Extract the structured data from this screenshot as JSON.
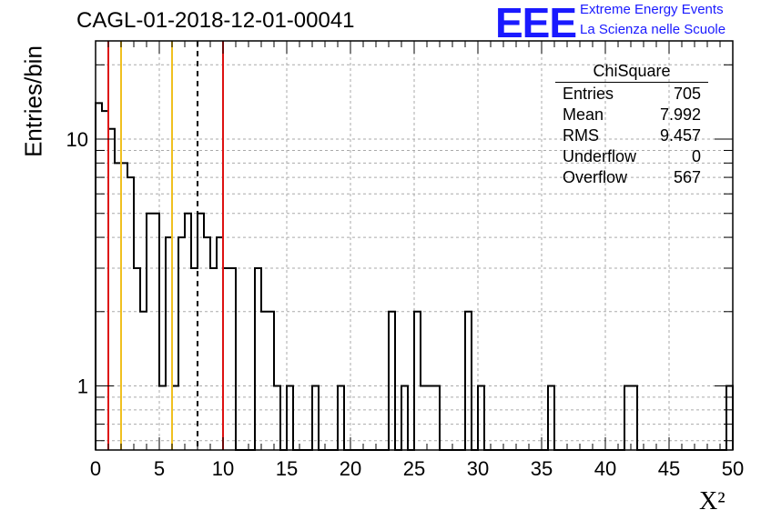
{
  "header": {
    "title": "CAGL-01-2018-12-01-00041",
    "logo_text": "EEE",
    "tagline_1": "Extreme Energy Events",
    "tagline_2": "La Scienza nelle Scuole"
  },
  "stats_box": {
    "title": "ChiSquare",
    "rows": [
      {
        "label": "Entries",
        "value": "705"
      },
      {
        "label": "Mean",
        "value": "7.992"
      },
      {
        "label": "RMS",
        "value": "9.457"
      },
      {
        "label": "Underflow",
        "value": "0"
      },
      {
        "label": "Overflow",
        "value": "567"
      }
    ]
  },
  "colors": {
    "red_line": "#dd1111",
    "yellow_line": "#f0c020",
    "logo_blue": "#1a1aff"
  },
  "chart_data": {
    "type": "histogram",
    "xlabel": "X²",
    "ylabel": "Entries/bin",
    "xlim": [
      0,
      50
    ],
    "ylim": [
      0.55,
      25
    ],
    "y_scale": "log",
    "grid": true,
    "bin_width": 0.5,
    "x_ticks": [
      "0",
      "5",
      "10",
      "15",
      "20",
      "25",
      "30",
      "35",
      "40",
      "45",
      "50"
    ],
    "y_ticks": [
      {
        "value": 1,
        "label": "1"
      },
      {
        "value": 10,
        "label": "10"
      }
    ],
    "bins": [
      {
        "x": 0.0,
        "y": 14
      },
      {
        "x": 0.5,
        "y": 13
      },
      {
        "x": 1.0,
        "y": 11
      },
      {
        "x": 1.5,
        "y": 8
      },
      {
        "x": 2.0,
        "y": 8
      },
      {
        "x": 2.5,
        "y": 7
      },
      {
        "x": 3.0,
        "y": 3
      },
      {
        "x": 3.5,
        "y": 2
      },
      {
        "x": 4.0,
        "y": 5
      },
      {
        "x": 4.5,
        "y": 5
      },
      {
        "x": 5.0,
        "y": 1
      },
      {
        "x": 5.5,
        "y": 4
      },
      {
        "x": 6.0,
        "y": 1
      },
      {
        "x": 6.5,
        "y": 4
      },
      {
        "x": 7.0,
        "y": 5
      },
      {
        "x": 7.5,
        "y": 3
      },
      {
        "x": 8.0,
        "y": 5
      },
      {
        "x": 8.5,
        "y": 4
      },
      {
        "x": 9.0,
        "y": 3
      },
      {
        "x": 9.5,
        "y": 4
      },
      {
        "x": 10.0,
        "y": 3
      },
      {
        "x": 10.5,
        "y": 3
      },
      {
        "x": 12.5,
        "y": 3
      },
      {
        "x": 13.0,
        "y": 2
      },
      {
        "x": 13.5,
        "y": 2
      },
      {
        "x": 14.0,
        "y": 1
      },
      {
        "x": 15.0,
        "y": 1
      },
      {
        "x": 17.0,
        "y": 1
      },
      {
        "x": 19.0,
        "y": 1
      },
      {
        "x": 23.0,
        "y": 2
      },
      {
        "x": 24.0,
        "y": 1
      },
      {
        "x": 25.0,
        "y": 2
      },
      {
        "x": 25.5,
        "y": 1
      },
      {
        "x": 26.0,
        "y": 1
      },
      {
        "x": 26.5,
        "y": 1
      },
      {
        "x": 29.0,
        "y": 2
      },
      {
        "x": 30.0,
        "y": 1
      },
      {
        "x": 35.5,
        "y": 1
      },
      {
        "x": 41.5,
        "y": 1
      },
      {
        "x": 42.0,
        "y": 1
      },
      {
        "x": 49.5,
        "y": 1
      }
    ],
    "vertical_lines": [
      {
        "x": 1.0,
        "color": "#dd1111",
        "style": "solid"
      },
      {
        "x": 2.0,
        "color": "#f0c020",
        "style": "solid"
      },
      {
        "x": 6.0,
        "color": "#f0c020",
        "style": "solid"
      },
      {
        "x": 8.0,
        "color": "#000000",
        "style": "dashed"
      },
      {
        "x": 10.0,
        "color": "#dd1111",
        "style": "solid"
      }
    ]
  }
}
